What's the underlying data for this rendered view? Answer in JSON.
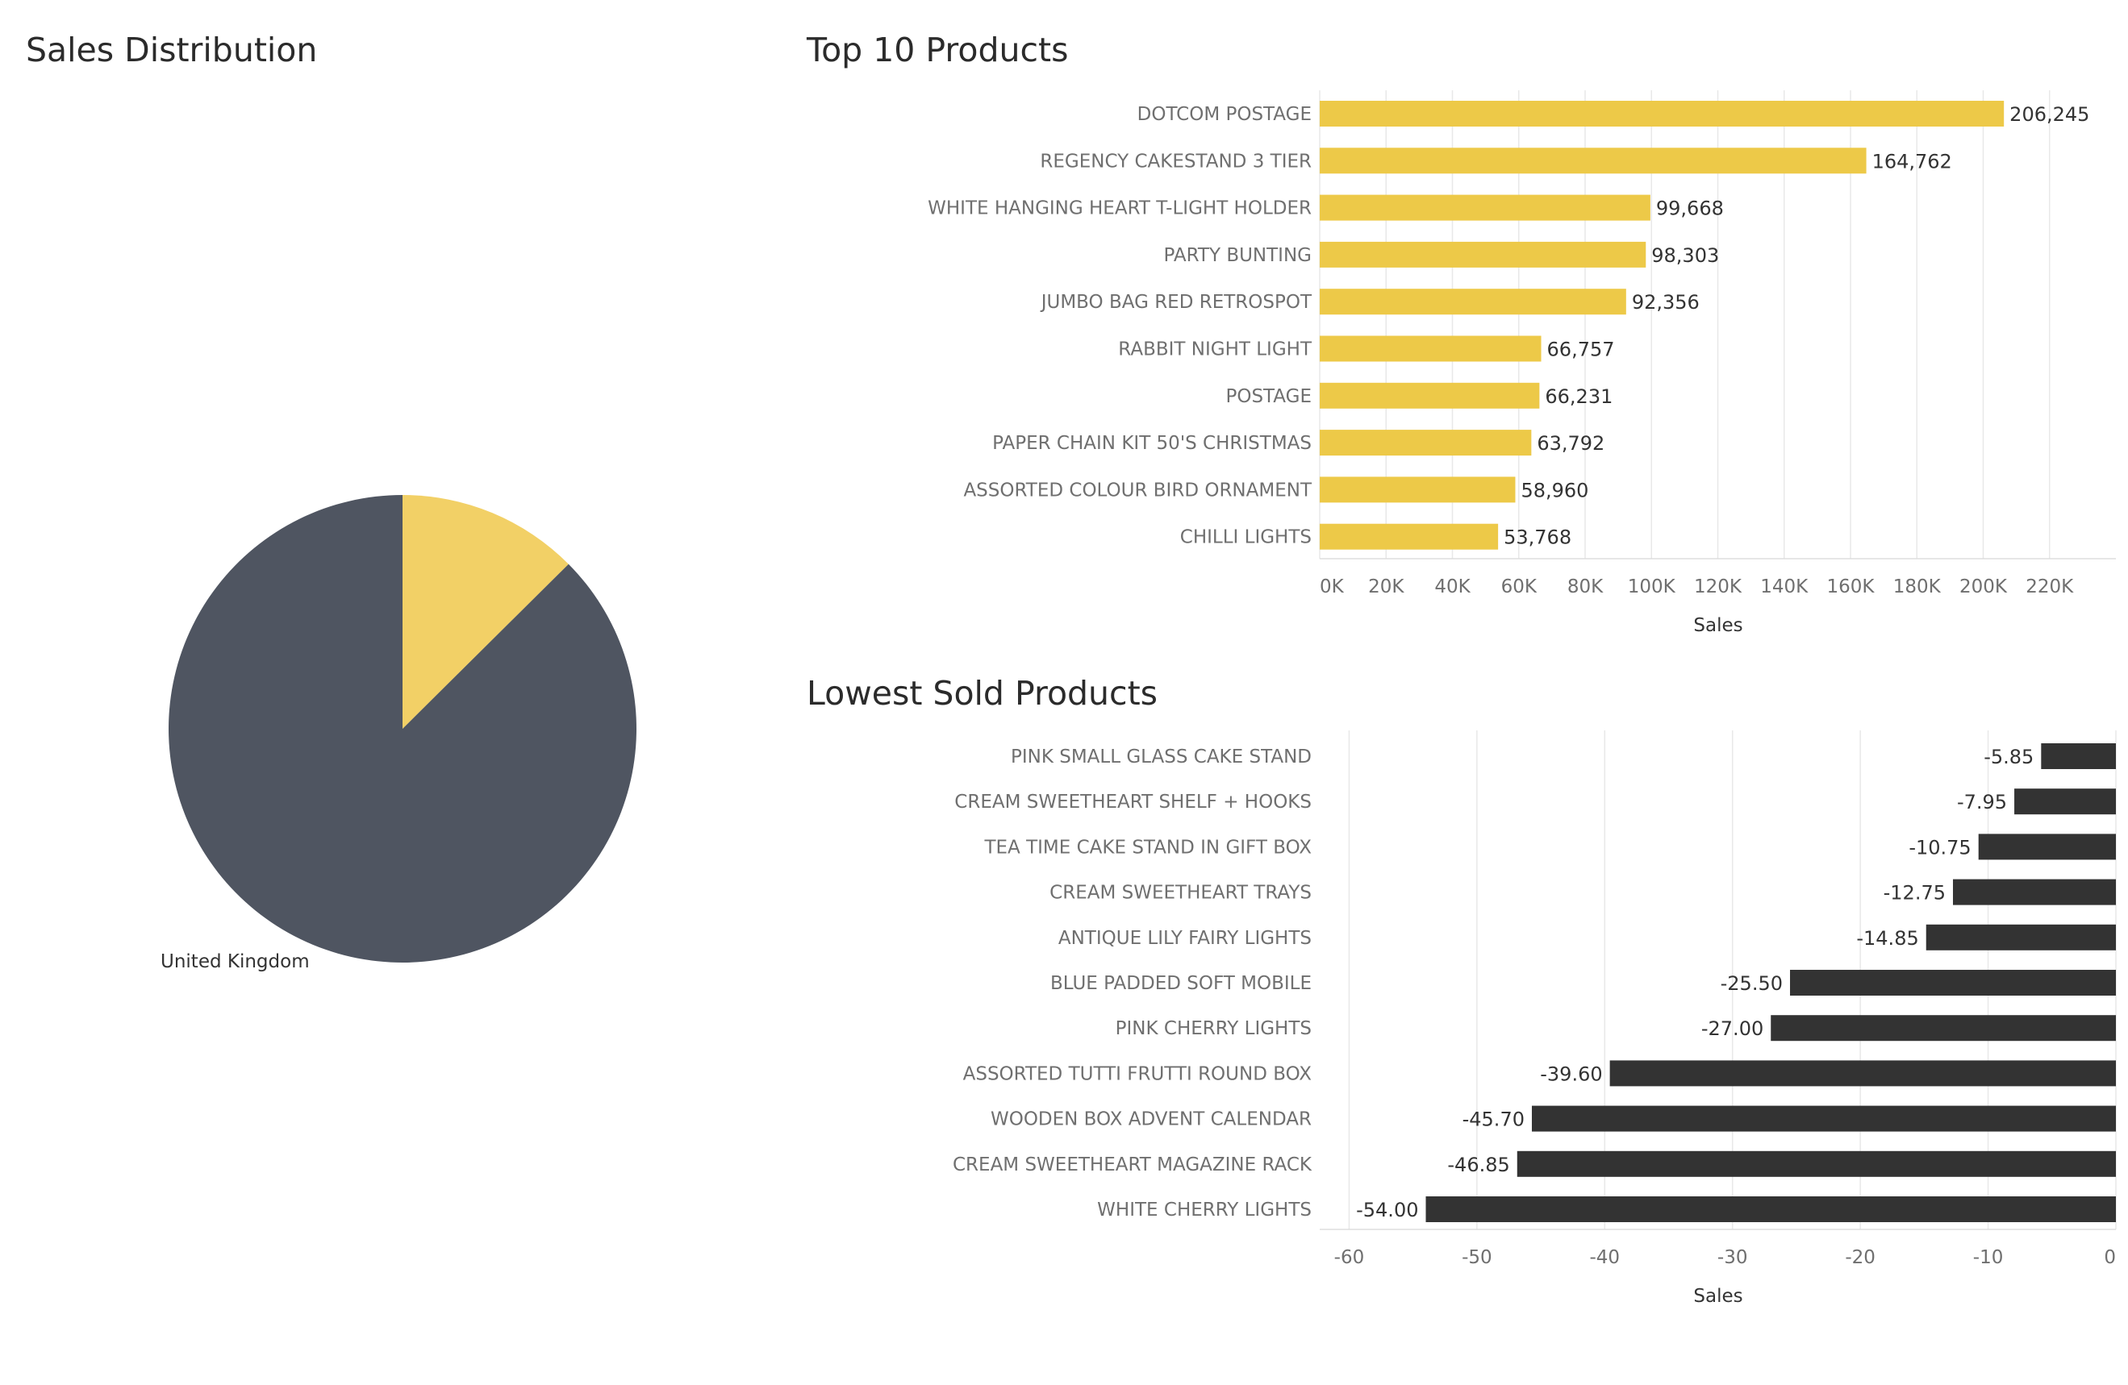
{
  "dashboard": {
    "pie_title": "Sales Distribution",
    "top_title": "Top 10 Products",
    "low_title": "Lowest Sold Products"
  },
  "colors": {
    "yellow": "#EDC948",
    "pie_yellow": "#F2D066",
    "dark_slate": "#4F5561",
    "dark_bar": "#333333",
    "grid": "#e8e8e8",
    "label_grey": "#6f6f6f"
  },
  "chart_data": [
    {
      "type": "pie",
      "title": "Sales Distribution",
      "slices": [
        {
          "name": "",
          "fraction": 0.1256,
          "color": "#F2D066"
        },
        {
          "name": "United Kingdom",
          "fraction": 0.8744,
          "color": "#4F5561"
        }
      ],
      "labels": [
        "United Kingdom"
      ]
    },
    {
      "type": "bar",
      "orientation": "horizontal",
      "title": "Top 10 Products",
      "xlabel": "Sales",
      "ylabel": "",
      "xlim": [
        0,
        240000
      ],
      "ticks": [
        0,
        20000,
        40000,
        60000,
        80000,
        100000,
        120000,
        140000,
        160000,
        180000,
        200000,
        220000
      ],
      "tick_labels": [
        "0K",
        "20K",
        "40K",
        "60K",
        "80K",
        "100K",
        "120K",
        "140K",
        "160K",
        "180K",
        "200K",
        "220K"
      ],
      "categories": [
        "DOTCOM POSTAGE",
        "REGENCY CAKESTAND 3 TIER",
        "WHITE HANGING HEART T-LIGHT HOLDER",
        "PARTY BUNTING",
        "JUMBO BAG RED RETROSPOT",
        "RABBIT NIGHT LIGHT",
        "POSTAGE",
        "PAPER CHAIN KIT 50'S CHRISTMAS",
        "ASSORTED COLOUR BIRD ORNAMENT",
        "CHILLI LIGHTS"
      ],
      "values": [
        206245,
        164762,
        99668,
        98303,
        92356,
        66757,
        66231,
        63792,
        58960,
        53768
      ],
      "value_labels": [
        "206,245",
        "164,762",
        "99,668",
        "98,303",
        "92,356",
        "66,757",
        "66,231",
        "63,792",
        "58,960",
        "53,768"
      ],
      "grid": true
    },
    {
      "type": "bar",
      "orientation": "horizontal",
      "title": "Lowest Sold Products",
      "xlabel": "Sales",
      "ylabel": "",
      "xlim": [
        -62.3,
        0
      ],
      "ticks": [
        -60,
        -50,
        -40,
        -30,
        -20,
        -10,
        0
      ],
      "tick_labels": [
        "-60",
        "-50",
        "-40",
        "-30",
        "-20",
        "-10",
        "0"
      ],
      "categories": [
        "PINK SMALL GLASS CAKE STAND",
        "CREAM SWEETHEART SHELF + HOOKS",
        "TEA TIME CAKE STAND IN GIFT BOX",
        "CREAM SWEETHEART TRAYS",
        "ANTIQUE LILY FAIRY LIGHTS",
        "BLUE PADDED SOFT MOBILE",
        "PINK CHERRY LIGHTS",
        "ASSORTED TUTTI FRUTTI ROUND BOX",
        "WOODEN BOX ADVENT CALENDAR",
        "CREAM SWEETHEART MAGAZINE RACK",
        "WHITE CHERRY LIGHTS"
      ],
      "values": [
        -5.85,
        -7.95,
        -10.75,
        -12.75,
        -14.85,
        -25.5,
        -27.0,
        -39.6,
        -45.7,
        -46.85,
        -54.0
      ],
      "value_labels": [
        "-5.85",
        "-7.95",
        "-10.75",
        "-12.75",
        "-14.85",
        "-25.50",
        "-27.00",
        "-39.60",
        "-45.70",
        "-46.85",
        "-54.00"
      ],
      "grid": true
    }
  ]
}
